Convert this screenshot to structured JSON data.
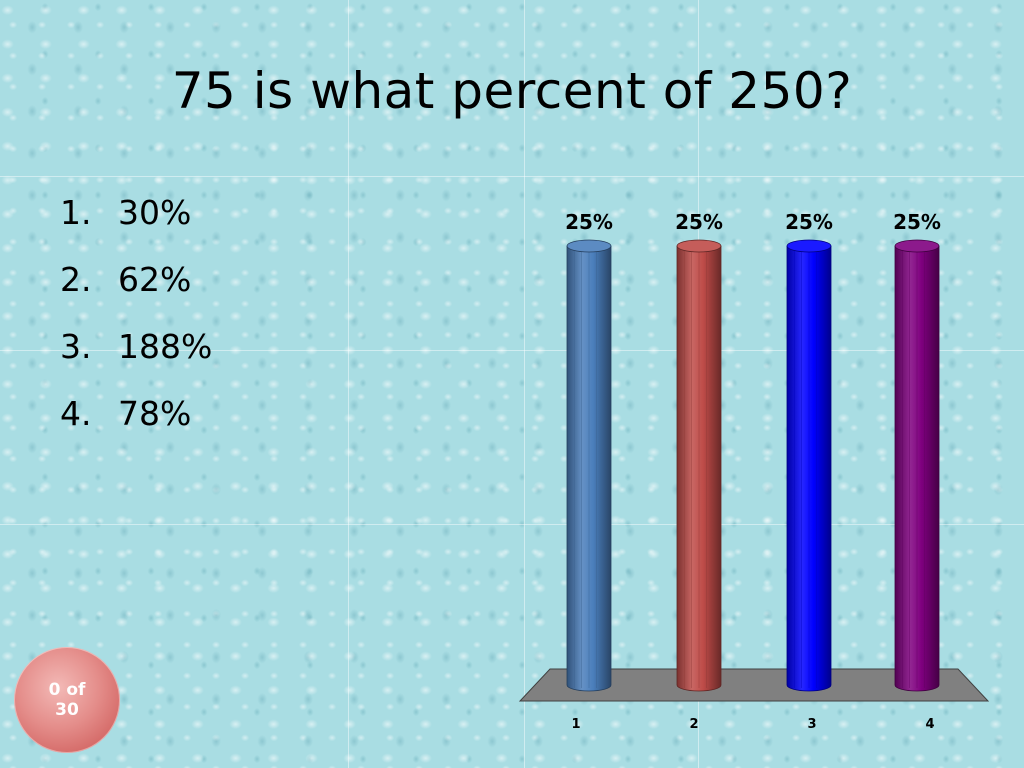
{
  "slide": {
    "title": "75 is what percent of 250?"
  },
  "answers": [
    {
      "number": "1.",
      "text": "30%"
    },
    {
      "number": "2.",
      "text": "62%"
    },
    {
      "number": "3.",
      "text": "188%"
    },
    {
      "number": "4.",
      "text": "78%"
    }
  ],
  "counter": {
    "line1": "0 of",
    "line2": "30"
  },
  "chart_data": {
    "type": "bar",
    "categories": [
      "1",
      "2",
      "3",
      "4"
    ],
    "values": [
      25,
      25,
      25,
      25
    ],
    "data_labels": [
      "25%",
      "25%",
      "25%",
      "25%"
    ],
    "colors": [
      "#4a7ebb",
      "#be4b48",
      "#0000ff",
      "#7f007f"
    ],
    "title": "",
    "xlabel": "",
    "ylabel": "",
    "ylim": [
      0,
      25
    ],
    "grid": false,
    "legend": "none",
    "style": "3d-cylinder"
  }
}
